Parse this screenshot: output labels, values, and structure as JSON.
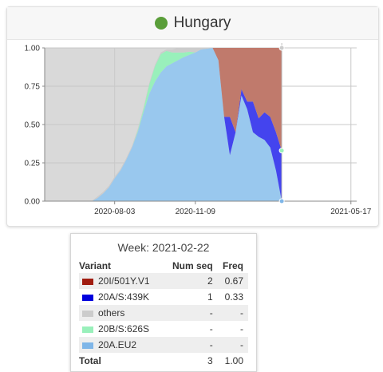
{
  "header": {
    "title": "Hungary",
    "dot_color": "#5a9e3a"
  },
  "chart_data": {
    "type": "area",
    "stacked": true,
    "ylim": [
      0,
      1
    ],
    "y_ticks": [
      "0.00",
      "0.25",
      "0.50",
      "0.75",
      "1.00"
    ],
    "x_ticks": [
      "2020-08-03",
      "2020-11-09",
      "2021-05-17"
    ],
    "xlim": [
      "2020-05-10",
      "2021-05-24"
    ],
    "grid": true,
    "shaded_region": {
      "start": "2020-05-10",
      "end": "2021-02-22",
      "color": "#d9d9d9"
    },
    "x": [
      "2020-07-06",
      "2020-07-13",
      "2020-07-20",
      "2020-07-27",
      "2020-08-03",
      "2020-08-10",
      "2020-08-17",
      "2020-08-24",
      "2020-08-31",
      "2020-09-07",
      "2020-09-14",
      "2020-09-21",
      "2020-09-28",
      "2020-10-05",
      "2020-10-12",
      "2020-10-19",
      "2020-10-26",
      "2020-11-02",
      "2020-11-09",
      "2020-11-16",
      "2020-11-23",
      "2020-11-30",
      "2020-12-07",
      "2020-12-14",
      "2020-12-21",
      "2020-12-28",
      "2021-01-04",
      "2021-01-11",
      "2021-01-18",
      "2021-01-25",
      "2021-02-01",
      "2021-02-08",
      "2021-02-15",
      "2021-02-22"
    ],
    "series": [
      {
        "name": "20A.EU2",
        "color": "#99c8ee",
        "values": [
          0,
          0.02,
          0.05,
          0.09,
          0.15,
          0.2,
          0.27,
          0.35,
          0.45,
          0.58,
          0.7,
          0.78,
          0.84,
          0.88,
          0.9,
          0.92,
          0.94,
          0.955,
          0.97,
          0.99,
          0.995,
          1,
          0.92,
          0.55,
          0.3,
          0.45,
          0.69,
          0.6,
          0.45,
          0.42,
          0.4,
          0.35,
          0.2,
          0
        ]
      },
      {
        "name": "20B/S:626S",
        "color": "#99f0bb",
        "values": [
          0,
          0,
          0,
          0,
          0,
          0,
          0,
          0,
          0.01,
          0.02,
          0.06,
          0.1,
          0.12,
          0.1,
          0.07,
          0.05,
          0.03,
          0.02,
          0,
          0,
          0,
          0,
          0,
          0,
          0,
          0,
          0,
          0,
          0,
          0,
          0,
          0,
          0,
          0
        ]
      },
      {
        "name": "others",
        "color": "#cccccc",
        "values": [
          0,
          0.01,
          0.01,
          0.01,
          0.01,
          0.01,
          0.01,
          0.01,
          0.01,
          0.01,
          0.01,
          0.01,
          0.01,
          0.01,
          0.02,
          0.03,
          0.03,
          0.025,
          0.03,
          0.01,
          0.005,
          0,
          0,
          0,
          0,
          0,
          0,
          0,
          0,
          0,
          0,
          0,
          0,
          0
        ]
      },
      {
        "name": "20A/S:439K",
        "color": "#4444ee",
        "values": [
          0,
          0,
          0,
          0,
          0,
          0,
          0,
          0,
          0,
          0,
          0,
          0,
          0,
          0,
          0,
          0,
          0,
          0,
          0,
          0,
          0,
          0,
          0,
          0,
          0.25,
          0,
          0.04,
          0.05,
          0.2,
          0.12,
          0.18,
          0.2,
          0.25,
          0.33
        ]
      },
      {
        "name": "20I/501Y.V1",
        "color": "#c07a6c",
        "values": [
          0,
          0,
          0,
          0,
          0,
          0,
          0,
          0,
          0,
          0,
          0,
          0,
          0,
          0,
          0,
          0,
          0,
          0,
          0,
          0,
          0,
          0,
          0.08,
          0.45,
          0.45,
          0.55,
          0.27,
          0.35,
          0.35,
          0.46,
          0.42,
          0.45,
          0.55,
          0.67
        ]
      }
    ]
  },
  "tooltip": {
    "title": "Week: 2021-02-22",
    "headers": {
      "variant": "Variant",
      "num_seq": "Num seq",
      "freq": "Freq"
    },
    "rows": [
      {
        "color": "#a01c10",
        "variant": "20I/501Y.V1",
        "num_seq": "2",
        "freq": "0.67"
      },
      {
        "color": "#0000dd",
        "variant": "20A/S:439K",
        "num_seq": "1",
        "freq": "0.33"
      },
      {
        "color": "#cccccc",
        "variant": "others",
        "num_seq": "-",
        "freq": "-"
      },
      {
        "color": "#99f0bb",
        "variant": "20B/S:626S",
        "num_seq": "-",
        "freq": "-"
      },
      {
        "color": "#7fb6e8",
        "variant": "20A.EU2",
        "num_seq": "-",
        "freq": "-"
      }
    ],
    "total": {
      "label": "Total",
      "num_seq": "3",
      "freq": "1.00"
    }
  }
}
